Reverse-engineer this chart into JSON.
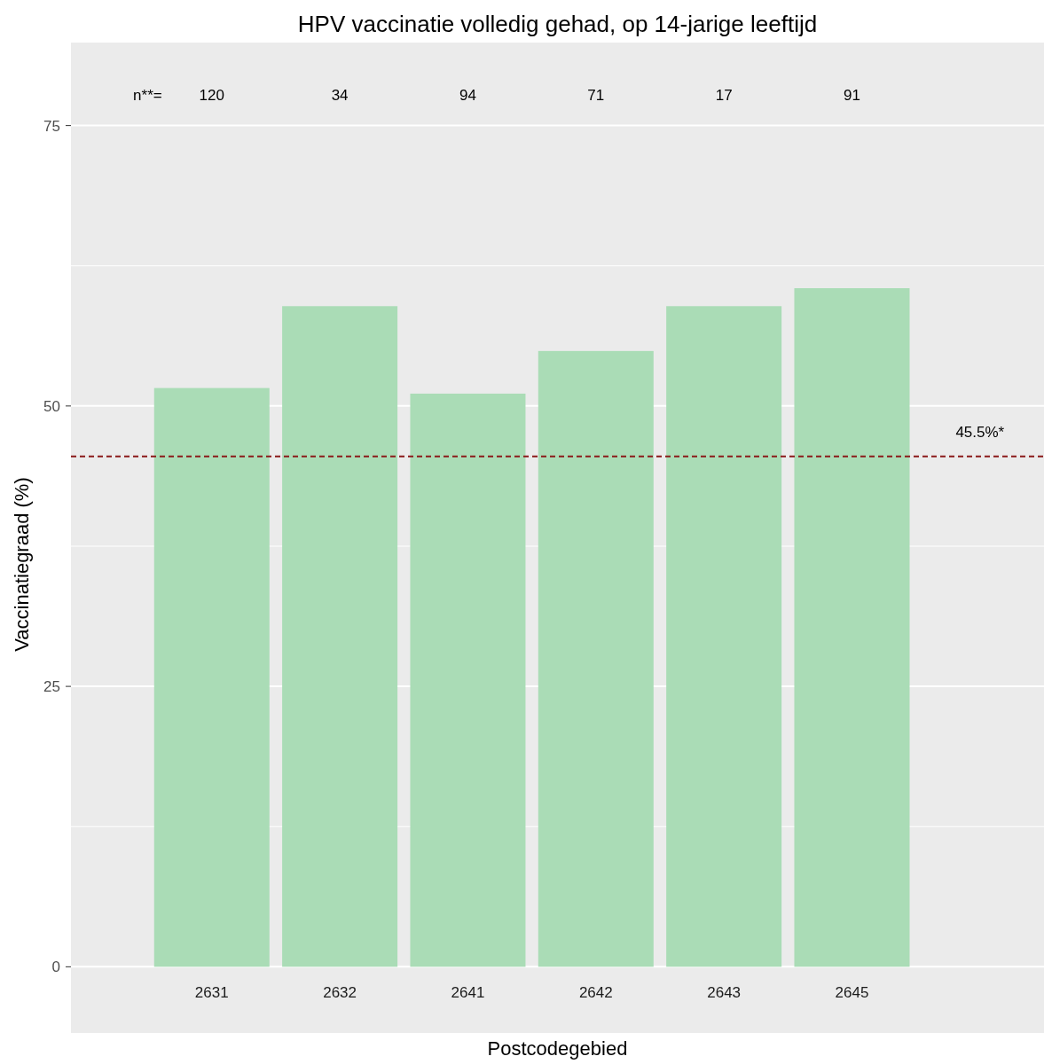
{
  "chart_data": {
    "type": "bar",
    "title": "HPV vaccinatie volledig gehad, op 14-jarige leeftijd",
    "xlabel": "Postcodegebied",
    "ylabel": "Vaccinatiegraad (%)",
    "categories": [
      "2631",
      "2632",
      "2641",
      "2642",
      "2643",
      "2645",
      null
    ],
    "values": [
      51.6,
      58.9,
      51.1,
      54.9,
      58.9,
      60.5,
      null
    ],
    "color": "#aadcb6",
    "ylim": [
      -5.9,
      82.4
    ],
    "yticks": [
      0,
      {
        "value": 12.5,
        "label": null
      },
      25,
      {
        "value": 37.5,
        "label": null
      },
      50,
      {
        "value": 62.5,
        "label": null
      },
      75
    ],
    "grid": "y",
    "ref_lines": [
      {
        "axis": "y",
        "value": 45.5,
        "label": "45.5%*",
        "color": "#8b1a1a",
        "line_style": "dashed"
      }
    ],
    "annotations": [
      "n**=",
      "120",
      "34",
      "94",
      "71",
      "17",
      "91"
    ]
  }
}
